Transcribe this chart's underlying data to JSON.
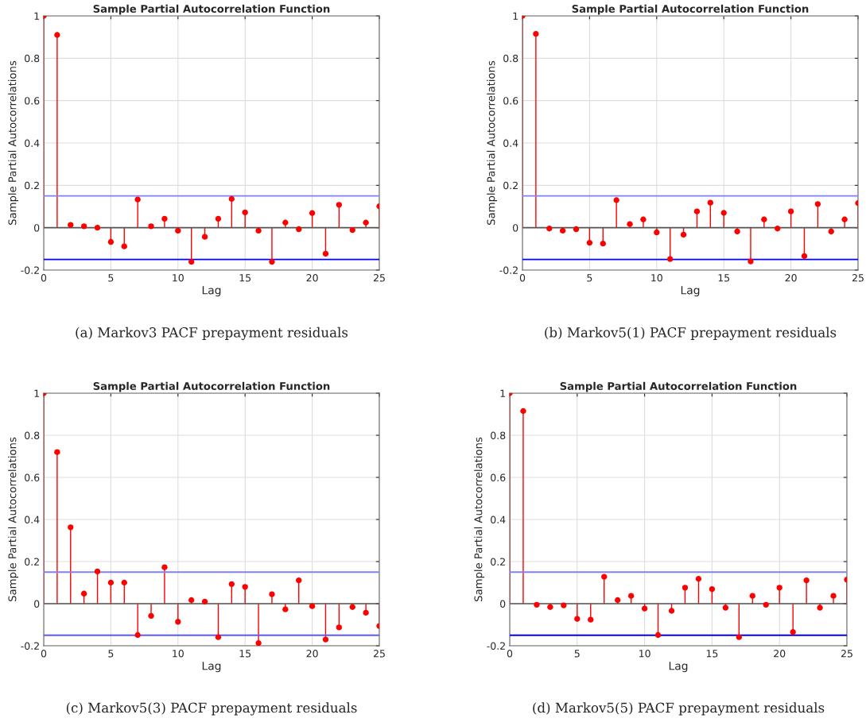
{
  "chart_data": [
    {
      "type": "lollipop",
      "title": "Sample Partial Autocorrelation Function",
      "xlabel": "Lag",
      "ylabel": "Sample Partial Autocorrelations",
      "x": [
        0,
        1,
        2,
        3,
        4,
        5,
        6,
        7,
        8,
        9,
        10,
        11,
        12,
        13,
        14,
        15,
        16,
        17,
        18,
        19,
        20,
        21,
        22,
        23,
        24,
        25
      ],
      "color": "#ff0000",
      "marker": "circle",
      "grid": true,
      "xlim": [
        0,
        25
      ],
      "ylim": [
        -0.2,
        1
      ],
      "xticks": [
        0,
        5,
        10,
        15,
        20,
        25
      ],
      "yticks": [
        -0.2,
        0,
        0.2,
        0.4,
        0.6,
        0.8,
        1
      ],
      "values": [
        1,
        0.91,
        0.013,
        0.007,
        0.0,
        -0.067,
        -0.088,
        0.133,
        0.007,
        0.042,
        -0.014,
        -0.161,
        -0.043,
        0.042,
        0.136,
        0.072,
        -0.014,
        -0.161,
        0.024,
        -0.007,
        0.069,
        -0.123,
        0.108,
        -0.011,
        0.024,
        0.101
      ],
      "ref_lines": [
        {
          "axis": "y",
          "value": 0.15,
          "color": "#7f7fff"
        },
        {
          "axis": "y",
          "value": -0.15,
          "color": "#0000ff"
        }
      ],
      "annotations": [
        "(a) Markov3 PACF prepayment residuals"
      ]
    },
    {
      "type": "lollipop",
      "title": "Sample Partial Autocorrelation Function",
      "xlabel": "Lag",
      "ylabel": "Sample Partial Autocorrelations",
      "x": [
        0,
        1,
        2,
        3,
        4,
        5,
        6,
        7,
        8,
        9,
        10,
        11,
        12,
        13,
        14,
        15,
        16,
        17,
        18,
        19,
        20,
        21,
        22,
        23,
        24,
        25
      ],
      "color": "#ff0000",
      "marker": "circle",
      "grid": true,
      "xlim": [
        0,
        25
      ],
      "ylim": [
        -0.2,
        1
      ],
      "xticks": [
        0,
        5,
        10,
        15,
        20,
        25
      ],
      "yticks": [
        -0.2,
        0,
        0.2,
        0.4,
        0.6,
        0.8,
        1
      ],
      "values": [
        1,
        0.915,
        -0.004,
        -0.014,
        -0.007,
        -0.071,
        -0.075,
        0.13,
        0.017,
        0.039,
        -0.022,
        -0.148,
        -0.033,
        0.077,
        0.118,
        0.07,
        -0.018,
        -0.159,
        0.039,
        -0.004,
        0.077,
        -0.134,
        0.112,
        -0.018,
        0.039,
        0.116
      ],
      "ref_lines": [
        {
          "axis": "y",
          "value": 0.15,
          "color": "#7f7fff"
        },
        {
          "axis": "y",
          "value": -0.15,
          "color": "#0000ff"
        }
      ],
      "annotations": [
        "(b) Markov5(1) PACF prepayment residuals"
      ]
    },
    {
      "type": "lollipop",
      "title": "Sample Partial Autocorrelation Function",
      "xlabel": "Lag",
      "ylabel": "Sample Partial Autocorrelations",
      "x": [
        0,
        1,
        2,
        3,
        4,
        5,
        6,
        7,
        8,
        9,
        10,
        11,
        12,
        13,
        14,
        15,
        16,
        17,
        18,
        19,
        20,
        21,
        22,
        23,
        24,
        25
      ],
      "color": "#ff0000",
      "marker": "circle",
      "grid": true,
      "xlim": [
        0,
        25
      ],
      "ylim": [
        -0.2,
        1
      ],
      "xticks": [
        0,
        5,
        10,
        15,
        20,
        25
      ],
      "yticks": [
        -0.2,
        0,
        0.2,
        0.4,
        0.6,
        0.8,
        1
      ],
      "values": [
        1,
        0.72,
        0.363,
        0.048,
        0.153,
        0.1,
        0.1,
        -0.149,
        -0.058,
        0.173,
        -0.086,
        0.017,
        0.01,
        -0.159,
        0.093,
        0.08,
        -0.187,
        0.045,
        -0.027,
        0.111,
        -0.012,
        -0.17,
        -0.113,
        -0.016,
        -0.043,
        -0.106
      ],
      "ref_lines": [
        {
          "axis": "y",
          "value": 0.15,
          "color": "#7f7fff"
        },
        {
          "axis": "y",
          "value": -0.15,
          "color": "#5a5aff"
        }
      ],
      "annotations": [
        "(c) Markov5(3) PACF prepayment residuals"
      ]
    },
    {
      "type": "lollipop",
      "title": "Sample Partial Autocorrelation Function",
      "xlabel": "Lag",
      "ylabel": "Sample Partial Autocorrelations",
      "x": [
        0,
        1,
        2,
        3,
        4,
        5,
        6,
        7,
        8,
        9,
        10,
        11,
        12,
        13,
        14,
        15,
        16,
        17,
        18,
        19,
        20,
        21,
        22,
        23,
        24,
        25
      ],
      "color": "#ff0000",
      "marker": "circle",
      "grid": true,
      "xlim": [
        0,
        25
      ],
      "ylim": [
        -0.2,
        1
      ],
      "xticks": [
        0,
        5,
        10,
        15,
        20,
        25
      ],
      "yticks": [
        -0.2,
        0,
        0.2,
        0.4,
        0.6,
        0.8,
        1
      ],
      "values": [
        1,
        0.915,
        -0.005,
        -0.016,
        -0.008,
        -0.072,
        -0.076,
        0.128,
        0.017,
        0.037,
        -0.023,
        -0.149,
        -0.034,
        0.076,
        0.118,
        0.069,
        -0.019,
        -0.159,
        0.037,
        -0.005,
        0.076,
        -0.135,
        0.111,
        -0.019,
        0.037,
        0.114
      ],
      "ref_lines": [
        {
          "axis": "y",
          "value": 0.15,
          "color": "#7f7fff"
        },
        {
          "axis": "y",
          "value": -0.15,
          "color": "#0000ff"
        }
      ],
      "annotations": [
        "(d) Markov5(5) PACF prepayment residuals"
      ]
    }
  ]
}
